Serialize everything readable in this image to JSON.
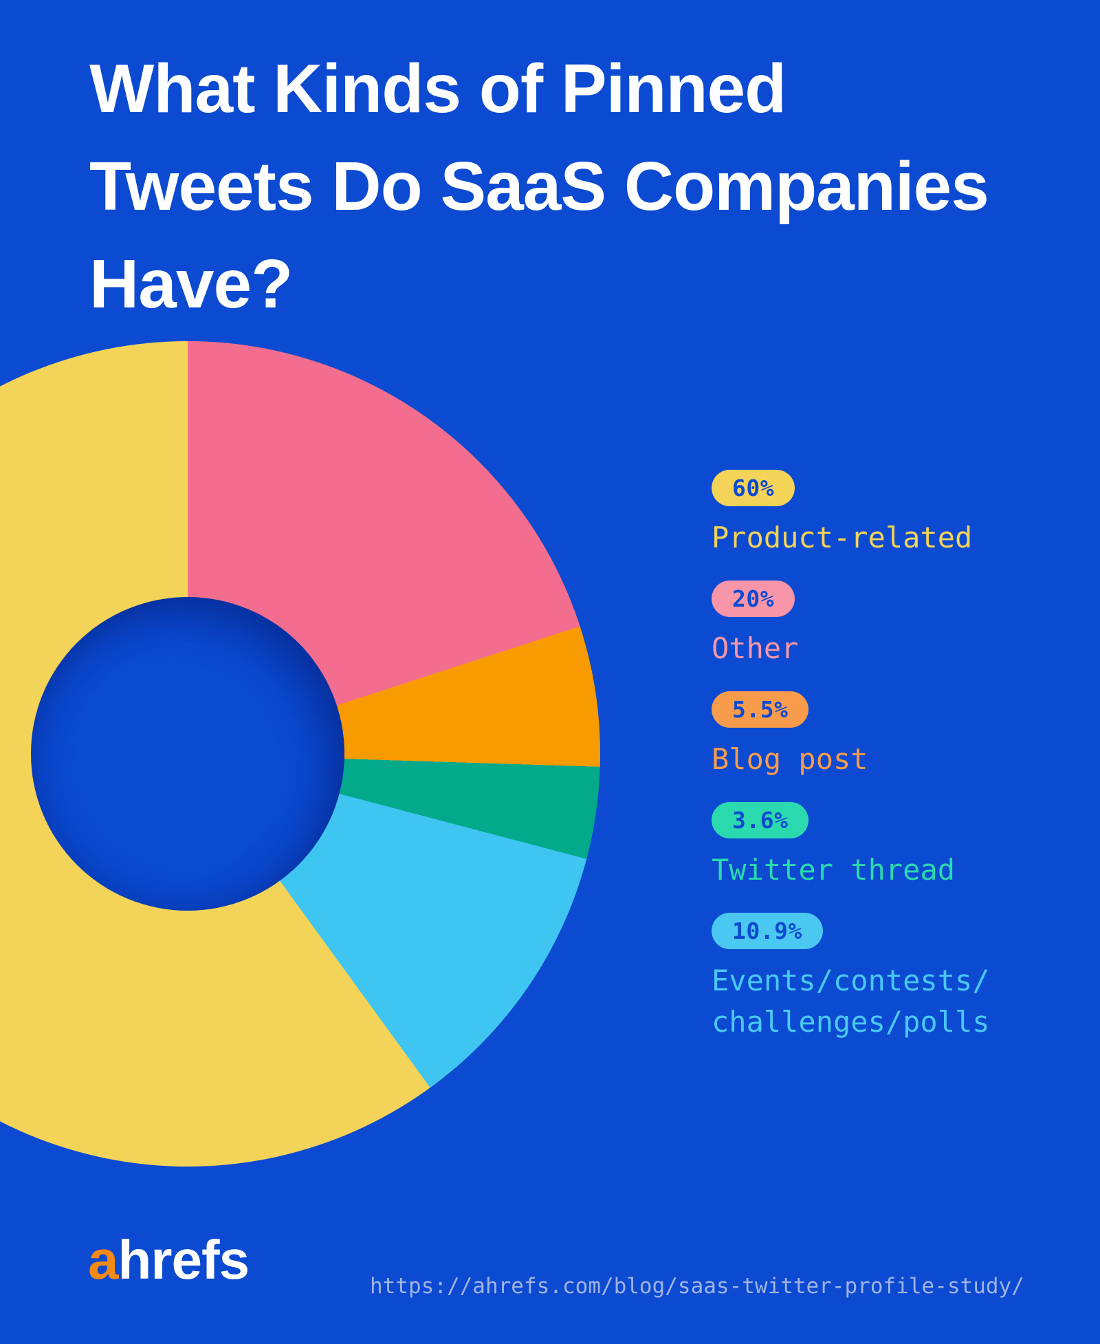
{
  "page": {
    "bg": "#0B4AD1",
    "title_color": "#FFFFFF"
  },
  "header": {
    "title": "What Kinds of Pinned Tweets Do SaaS Companies Have?",
    "title_lines": [
      "What Kinds of Pinned",
      "Tweets Do SaaS Companies",
      "Have?"
    ]
  },
  "chart_data": {
    "type": "pie",
    "donut": true,
    "inner_radius_ratio": 0.38,
    "start_angle_deg": 0,
    "direction": "clockwise",
    "legend_position": "right",
    "title": "What Kinds of Pinned Tweets Do SaaS Companies Have?",
    "categories": [
      "Other",
      "Blog post",
      "Twitter thread",
      "Events/contests/challenges/polls",
      "Product-related"
    ],
    "values": [
      20,
      5.5,
      3.6,
      10.9,
      60
    ],
    "slices": [
      {
        "label": "Other",
        "value": 20,
        "color": "#F36E8E"
      },
      {
        "label": "Blog post",
        "value": 5.5,
        "color": "#F89B00"
      },
      {
        "label": "Twitter thread",
        "value": 3.6,
        "color": "#02A98B"
      },
      {
        "label": "Events/contests/challenges/polls",
        "value": 10.9,
        "color": "#3EC5F1"
      },
      {
        "label": "Product-related",
        "value": 60,
        "color": "#F3D358"
      }
    ]
  },
  "legend": {
    "items": [
      {
        "pct": "60%",
        "label": "Product-related",
        "label_lines": [
          "Product-related"
        ],
        "color": "#F3D358"
      },
      {
        "pct": "20%",
        "label": "Other",
        "label_lines": [
          "Other"
        ],
        "color": "#F995A9"
      },
      {
        "pct": "5.5%",
        "label": "Blog post",
        "label_lines": [
          "Blog post"
        ],
        "color": "#F89C4B"
      },
      {
        "pct": "3.6%",
        "label": "Twitter thread",
        "label_lines": [
          "Twitter thread"
        ],
        "color": "#2BD9AE"
      },
      {
        "pct": "10.9%",
        "label": "Events/contests/challenges/polls",
        "label_lines": [
          "Events/contests/",
          "challenges/polls"
        ],
        "color": "#4AC8F1"
      }
    ]
  },
  "footer": {
    "logo_a": "a",
    "logo_rest": "hrefs",
    "logo_a_color": "#F28A16",
    "url": "https://ahrefs.com/blog/saas-twitter-profile-study/",
    "url_color": "#A0B3E2"
  }
}
